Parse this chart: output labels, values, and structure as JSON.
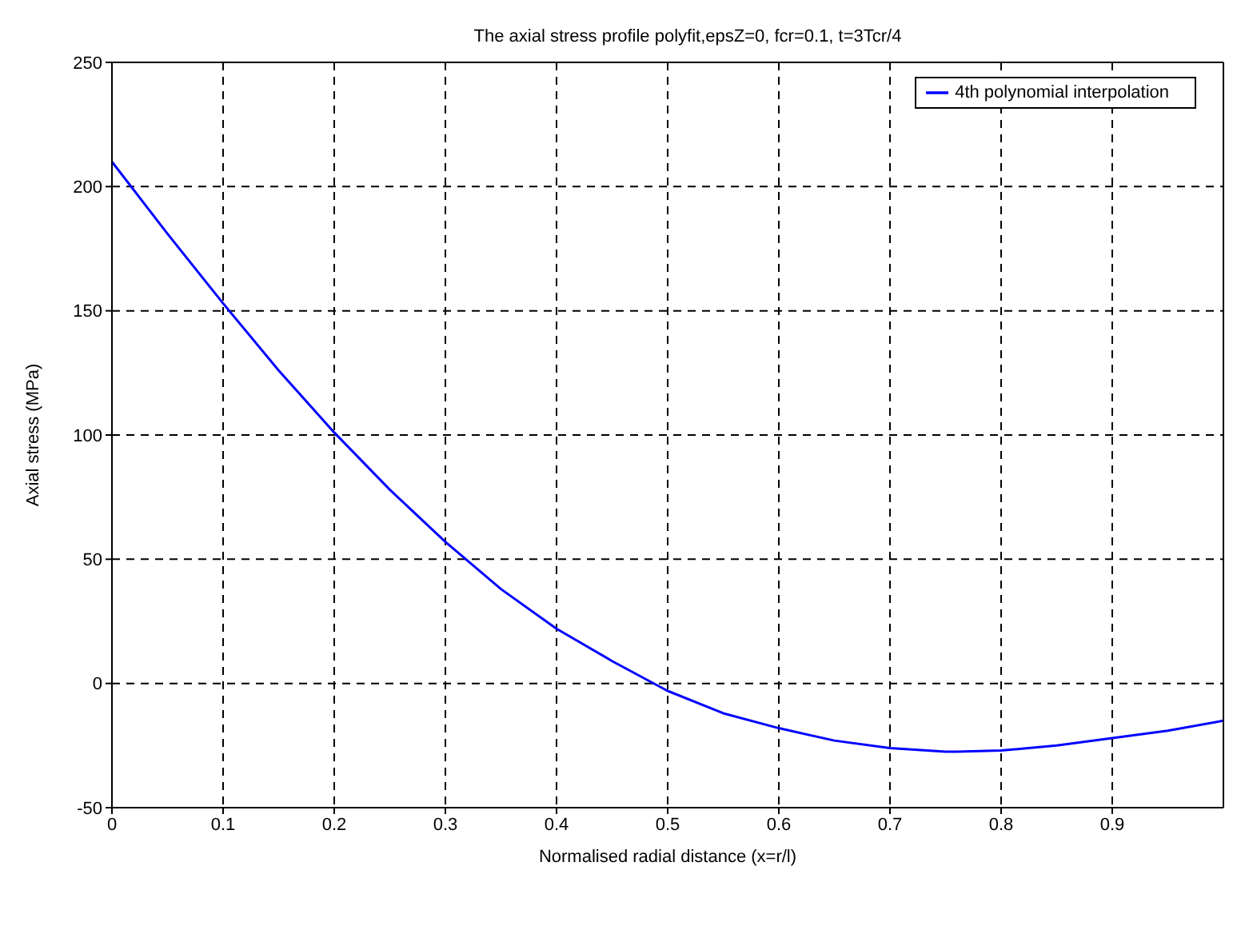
{
  "chart_data": {
    "type": "line",
    "title": "The axial stress profile polyfit,epsZ=0, fcr=0.1, t=3Tcr/4",
    "xlabel": "Normalised radial distance (x=r/l)",
    "ylabel": "Axial stress (MPa)",
    "x": [
      0,
      0.05,
      0.1,
      0.15,
      0.2,
      0.25,
      0.3,
      0.35,
      0.4,
      0.45,
      0.5,
      0.55,
      0.6,
      0.65,
      0.7,
      0.75,
      0.76,
      0.8,
      0.85,
      0.9,
      0.95,
      1.0
    ],
    "series": [
      {
        "name": "4th polynomial interpolation",
        "color": "#0000ff",
        "values": [
          210,
          181,
          153,
          126,
          101,
          78,
          57,
          38,
          22,
          9,
          -3,
          -12,
          -18,
          -23,
          -26,
          -27.5,
          -27.5,
          -27,
          -25,
          -22,
          -19,
          -15
        ]
      }
    ],
    "xlim": [
      0,
      1
    ],
    "xticks": [
      0,
      0.1,
      0.2,
      0.3,
      0.4,
      0.5,
      0.6,
      0.7,
      0.8,
      0.9
    ],
    "ylim": [
      -50,
      250
    ],
    "yticks": [
      -50,
      0,
      50,
      100,
      150,
      200,
      250
    ],
    "grid": true,
    "legend": "top right",
    "marker": "none",
    "line_style": "solid"
  }
}
